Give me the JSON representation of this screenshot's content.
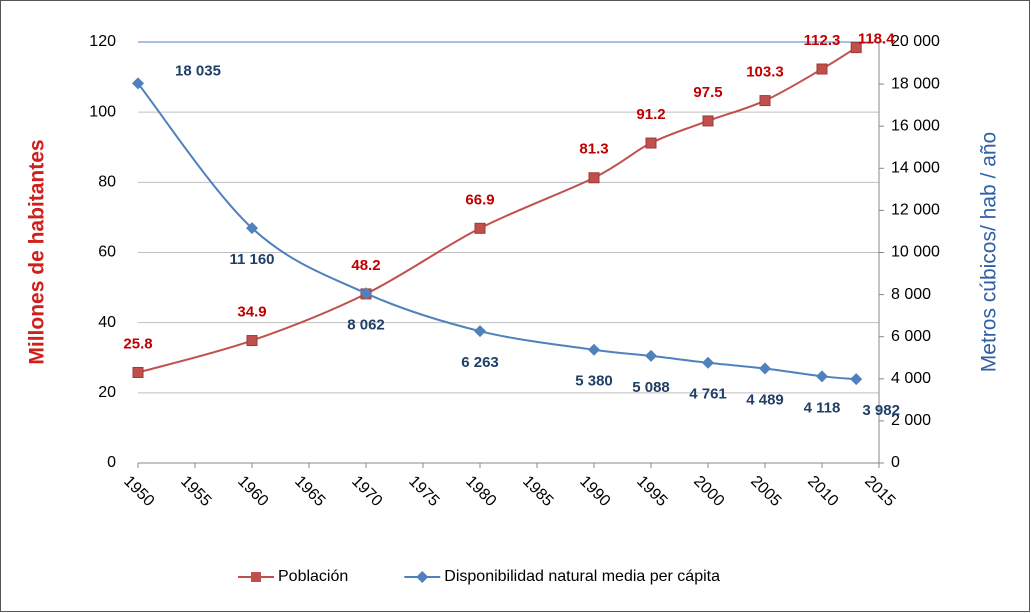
{
  "chart_data": {
    "type": "line",
    "x": [
      1950,
      1960,
      1970,
      1980,
      1990,
      1995,
      2000,
      2005,
      2010,
      2013
    ],
    "xlim": [
      1950,
      2015
    ],
    "xticks": [
      1950,
      1955,
      1960,
      1965,
      1970,
      1975,
      1980,
      1985,
      1990,
      1995,
      2000,
      2005,
      2010,
      2015
    ],
    "ylabel": "Millones de habitantes",
    "y2label": "Metros cúbicos/ hab / año",
    "ylim": [
      0,
      120
    ],
    "yticks": [
      0,
      20,
      40,
      60,
      80,
      100,
      120
    ],
    "y2lim": [
      0,
      20000
    ],
    "y2ticks": [
      0,
      {
        "value": 2000,
        "label": "2 000"
      },
      {
        "value": 4000,
        "label": "4 000"
      },
      {
        "value": 6000,
        "label": "6 000"
      },
      {
        "value": 8000,
        "label": "8 000"
      },
      {
        "value": 10000,
        "label": "10 000"
      },
      {
        "value": 12000,
        "label": "12 000"
      },
      {
        "value": 14000,
        "label": "14 000"
      },
      {
        "value": 16000,
        "label": "16 000"
      },
      {
        "value": 18000,
        "label": "18 000"
      },
      {
        "value": 20000,
        "label": "20 000"
      }
    ],
    "grid": true,
    "legend": "bottom",
    "series": [
      {
        "name": "Población",
        "color": "#c0504d",
        "label_color": "#c00000",
        "marker": "square",
        "values": [
          25.8,
          34.9,
          48.2,
          66.9,
          81.3,
          91.2,
          97.5,
          103.3,
          112.3,
          118.4
        ]
      },
      {
        "name": "Disponibilidad natural media per cápita",
        "color": "#4f81bd",
        "label_color": "#1f3f66",
        "marker": "diamond",
        "axis": "y2",
        "values": [
          18035,
          11160,
          8062,
          6263,
          5380,
          5088,
          4761,
          4489,
          4118,
          3982
        ],
        "value_labels": [
          "18 035",
          "11 160",
          "8 062",
          "6 263",
          "5 380",
          "5 088",
          "4 761",
          "4 489",
          "4 118",
          "3 982"
        ]
      }
    ]
  }
}
